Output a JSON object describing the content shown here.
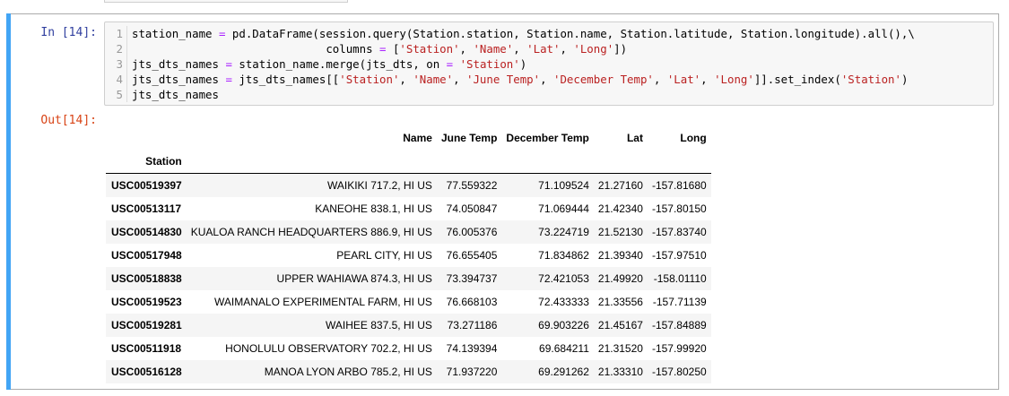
{
  "notebook": {
    "in_prompt": "In [14]:",
    "out_prompt": "Out[14]:",
    "code_lines": [
      {
        "num": "1",
        "segments": [
          {
            "t": "station_name ",
            "c": ""
          },
          {
            "t": "=",
            "c": "op"
          },
          {
            "t": " pd.DataFrame(session.query(Station.station, Station.name, Station.latitude, Station.longitude).all(),\\",
            "c": ""
          }
        ]
      },
      {
        "num": "2",
        "segments": [
          {
            "t": "                             columns ",
            "c": ""
          },
          {
            "t": "=",
            "c": "op"
          },
          {
            "t": " [",
            "c": ""
          },
          {
            "t": "'Station'",
            "c": "str"
          },
          {
            "t": ", ",
            "c": ""
          },
          {
            "t": "'Name'",
            "c": "str"
          },
          {
            "t": ", ",
            "c": ""
          },
          {
            "t": "'Lat'",
            "c": "str"
          },
          {
            "t": ", ",
            "c": ""
          },
          {
            "t": "'Long'",
            "c": "str"
          },
          {
            "t": "])",
            "c": ""
          }
        ]
      },
      {
        "num": "3",
        "segments": [
          {
            "t": "jts_dts_names ",
            "c": ""
          },
          {
            "t": "=",
            "c": "op"
          },
          {
            "t": " station_name.merge(jts_dts, on ",
            "c": ""
          },
          {
            "t": "=",
            "c": "op"
          },
          {
            "t": " ",
            "c": ""
          },
          {
            "t": "'Station'",
            "c": "str"
          },
          {
            "t": ")",
            "c": ""
          }
        ]
      },
      {
        "num": "4",
        "segments": [
          {
            "t": "jts_dts_names ",
            "c": ""
          },
          {
            "t": "=",
            "c": "op"
          },
          {
            "t": " jts_dts_names[[",
            "c": ""
          },
          {
            "t": "'Station'",
            "c": "str"
          },
          {
            "t": ", ",
            "c": ""
          },
          {
            "t": "'Name'",
            "c": "str"
          },
          {
            "t": ", ",
            "c": ""
          },
          {
            "t": "'June Temp'",
            "c": "str"
          },
          {
            "t": ", ",
            "c": ""
          },
          {
            "t": "'December Temp'",
            "c": "str"
          },
          {
            "t": ", ",
            "c": ""
          },
          {
            "t": "'Lat'",
            "c": "str"
          },
          {
            "t": ", ",
            "c": ""
          },
          {
            "t": "'Long'",
            "c": "str"
          },
          {
            "t": "]].set_index(",
            "c": ""
          },
          {
            "t": "'Station'",
            "c": "str"
          },
          {
            "t": ")",
            "c": ""
          }
        ]
      },
      {
        "num": "5",
        "segments": [
          {
            "t": "jts_dts_names",
            "c": ""
          }
        ]
      }
    ],
    "table": {
      "index_name": "Station",
      "columns": [
        "Name",
        "June Temp",
        "December Temp",
        "Lat",
        "Long"
      ],
      "rows": [
        [
          "USC00519397",
          "WAIKIKI 717.2, HI US",
          "77.559322",
          "71.109524",
          "21.27160",
          "-157.81680"
        ],
        [
          "USC00513117",
          "KANEOHE 838.1, HI US",
          "74.050847",
          "71.069444",
          "21.42340",
          "-157.80150"
        ],
        [
          "USC00514830",
          "KUALOA RANCH HEADQUARTERS 886.9, HI US",
          "76.005376",
          "73.224719",
          "21.52130",
          "-157.83740"
        ],
        [
          "USC00517948",
          "PEARL CITY, HI US",
          "76.655405",
          "71.834862",
          "21.39340",
          "-157.97510"
        ],
        [
          "USC00518838",
          "UPPER WAHIAWA 874.3, HI US",
          "73.394737",
          "72.421053",
          "21.49920",
          "-158.01110"
        ],
        [
          "USC00519523",
          "WAIMANALO EXPERIMENTAL FARM, HI US",
          "76.668103",
          "72.433333",
          "21.33556",
          "-157.71139"
        ],
        [
          "USC00519281",
          "WAIHEE 837.5, HI US",
          "73.271186",
          "69.903226",
          "21.45167",
          "-157.84889"
        ],
        [
          "USC00511918",
          "HONOLULU OBSERVATORY 702.2, HI US",
          "74.139394",
          "69.684211",
          "21.31520",
          "-157.99920"
        ],
        [
          "USC00516128",
          "MANOA LYON ARBO 785.2, HI US",
          "71.937220",
          "69.291262",
          "21.33310",
          "-157.80250"
        ]
      ]
    },
    "colors": {
      "selected_bar": "#42a5f5",
      "in_prompt": "#303f9f",
      "out_prompt": "#d84315",
      "string": "#ba2121",
      "operator": "#aa22ff"
    }
  }
}
